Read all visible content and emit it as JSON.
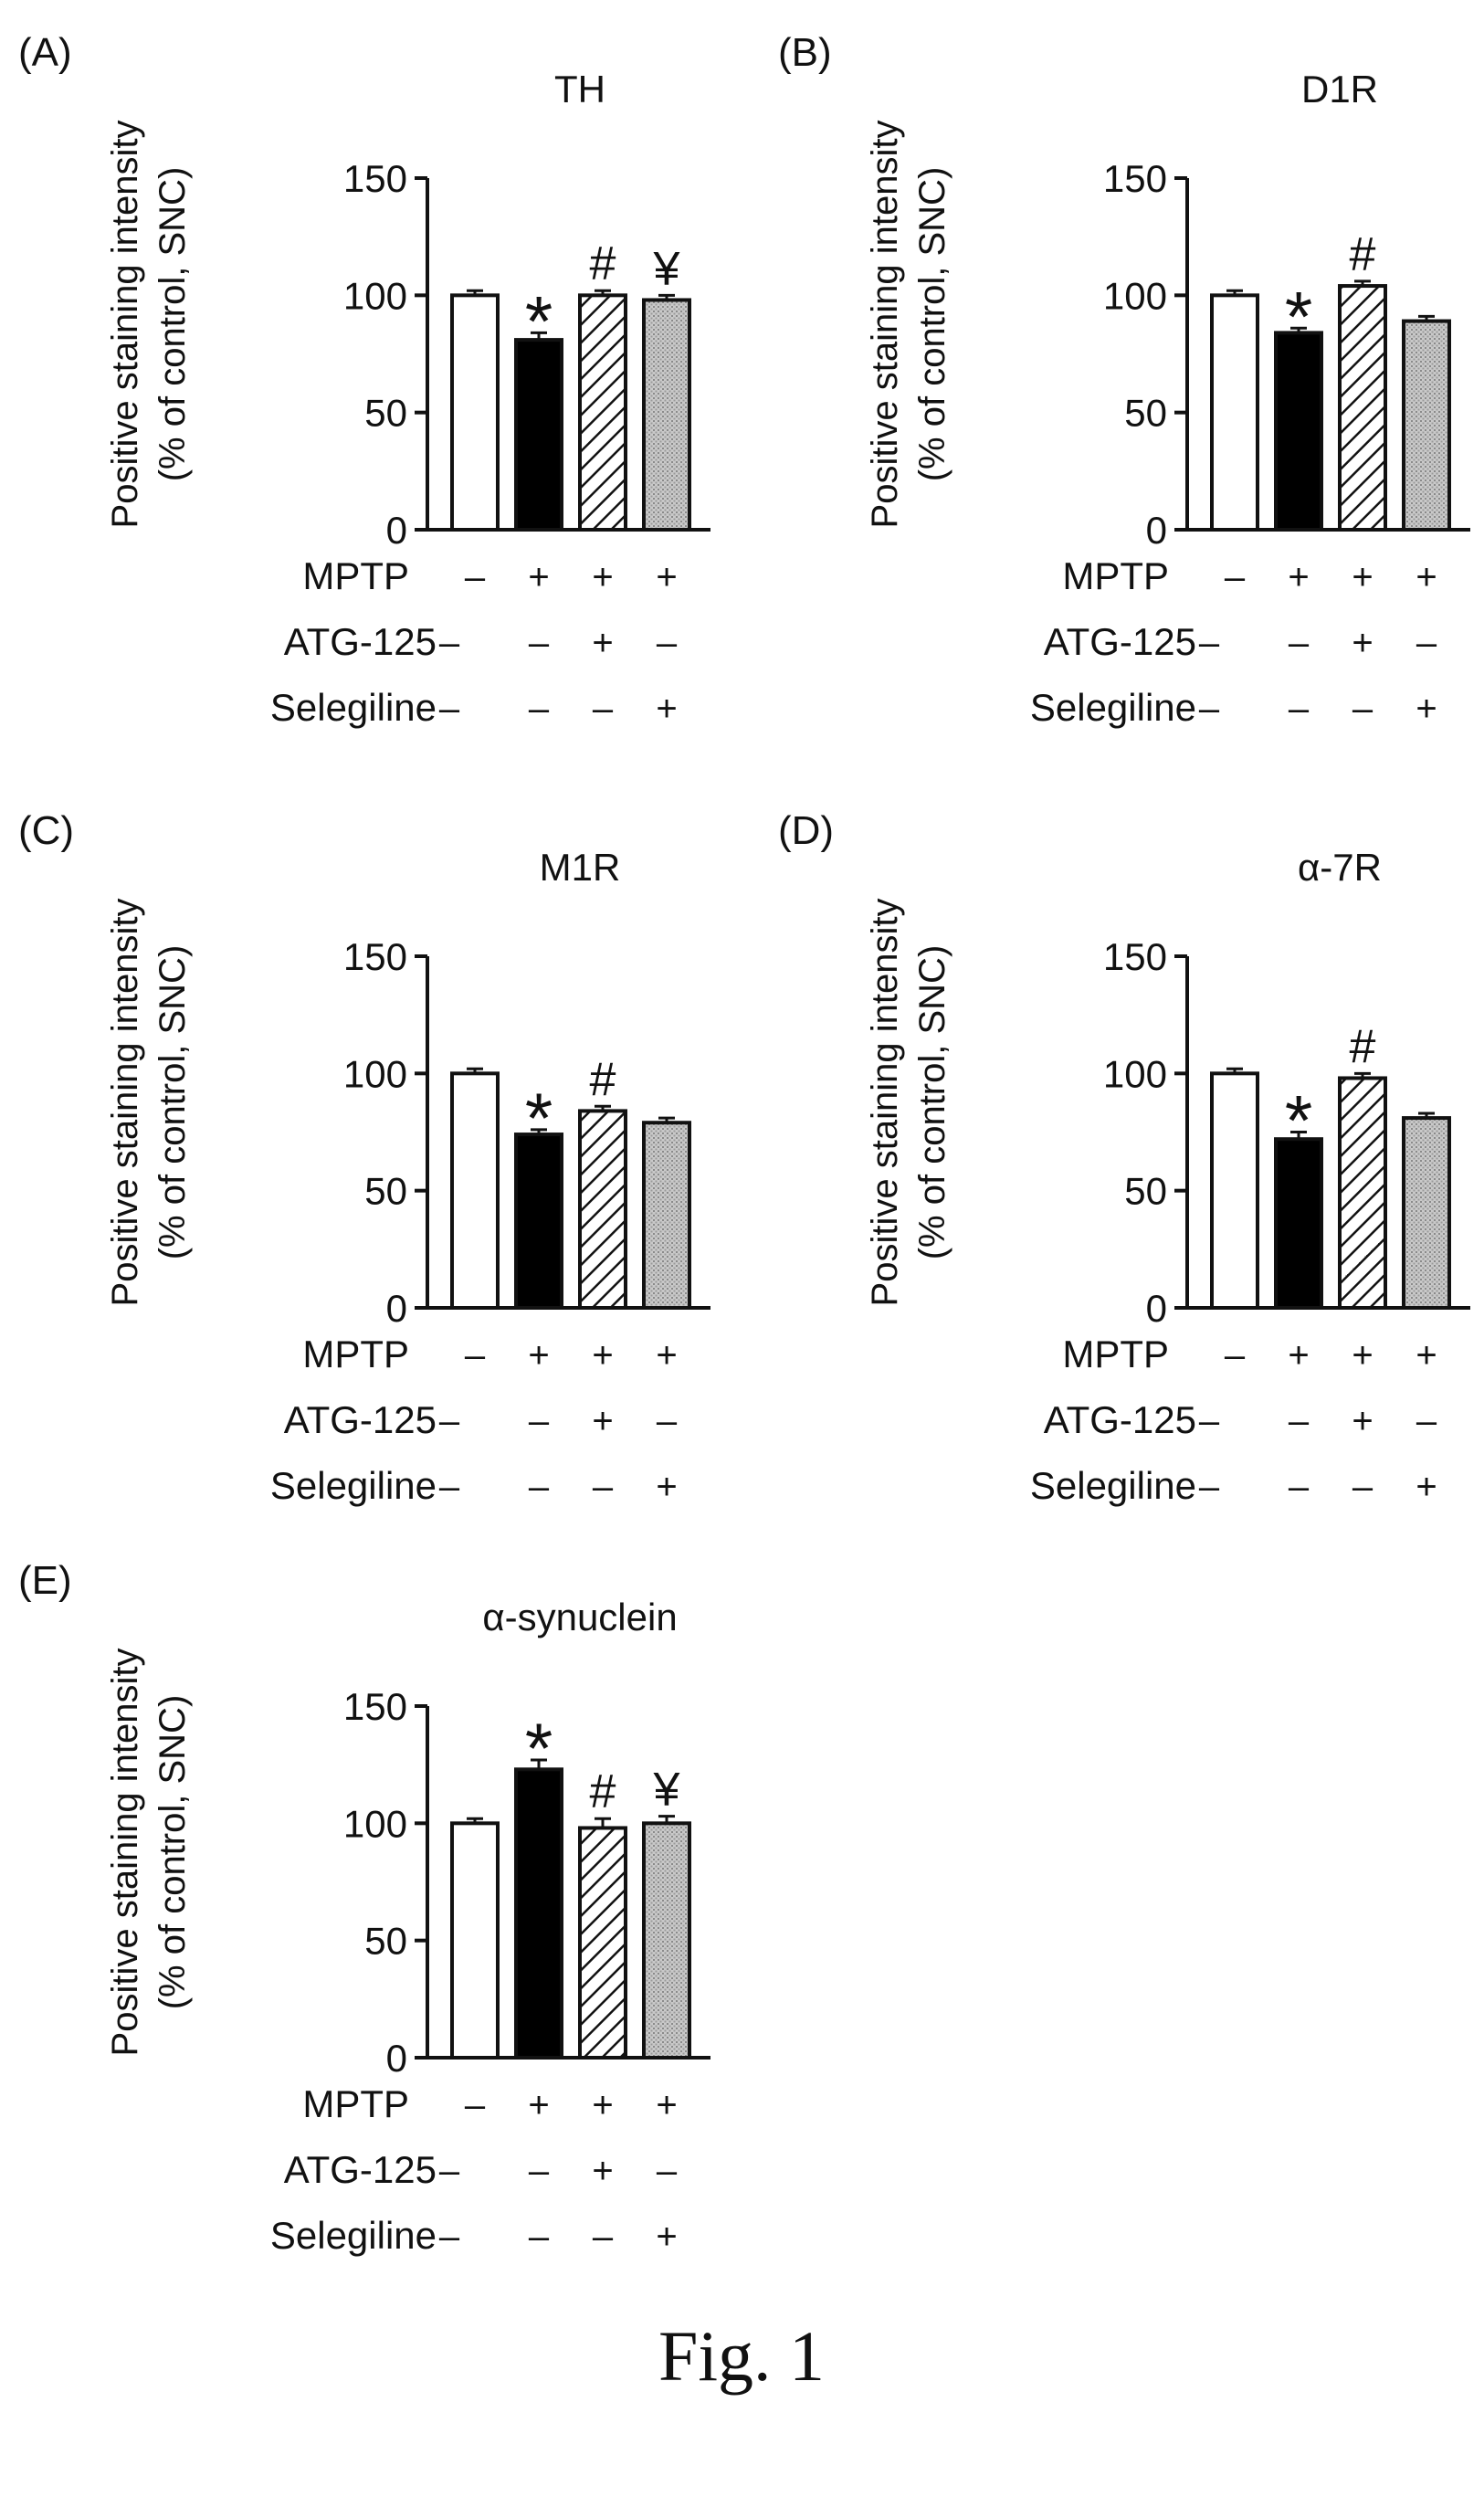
{
  "figure_caption": "Fig. 1",
  "colors": {
    "ink": "#111111",
    "selegiline_fill": "#c9c9c9",
    "control_fill": "#ffffff",
    "mptp_fill": "#000000"
  },
  "chart_data": [
    {
      "panel": "(A)",
      "type": "bar",
      "title": "TH",
      "ylabel": [
        "Positive staining intensity",
        "(% of control, SNC)"
      ],
      "ylim": [
        0,
        150
      ],
      "yticks": [
        "0",
        "50",
        "100",
        "150"
      ],
      "groups": [
        {
          "fill": "white",
          "value": 100,
          "error": 2,
          "marker": ""
        },
        {
          "fill": "black",
          "value": 81,
          "error": 3,
          "marker": "*"
        },
        {
          "fill": "hatched",
          "value": 100,
          "error": 2,
          "marker": "#"
        },
        {
          "fill": "dotted",
          "value": 98,
          "error": 2,
          "marker": "¥"
        }
      ],
      "treatment_rows": [
        {
          "label": "MPTP",
          "signs": [
            "–",
            "+",
            "+",
            "+"
          ]
        },
        {
          "label": "ATG-125",
          "signs": [
            "–",
            "–",
            "+",
            "–"
          ]
        },
        {
          "label": "Selegiline",
          "signs": [
            "–",
            "–",
            "–",
            "+"
          ]
        }
      ]
    },
    {
      "panel": "(B)",
      "type": "bar",
      "title": "D1R",
      "ylabel": [
        "Positive staining intensity",
        "(% of control, SNC)"
      ],
      "ylim": [
        0,
        150
      ],
      "yticks": [
        "0",
        "50",
        "100",
        "150"
      ],
      "groups": [
        {
          "fill": "white",
          "value": 100,
          "error": 2,
          "marker": ""
        },
        {
          "fill": "black",
          "value": 84,
          "error": 2,
          "marker": "*"
        },
        {
          "fill": "hatched",
          "value": 104,
          "error": 2,
          "marker": "#"
        },
        {
          "fill": "dotted",
          "value": 89,
          "error": 2,
          "marker": ""
        }
      ],
      "treatment_rows": [
        {
          "label": "MPTP",
          "signs": [
            "–",
            "+",
            "+",
            "+"
          ]
        },
        {
          "label": "ATG-125",
          "signs": [
            "–",
            "–",
            "+",
            "–"
          ]
        },
        {
          "label": "Selegiline",
          "signs": [
            "–",
            "–",
            "–",
            "+"
          ]
        }
      ]
    },
    {
      "panel": "(C)",
      "type": "bar",
      "title": "M1R",
      "ylabel": [
        "Positive staining intensity",
        "(% of control, SNC)"
      ],
      "ylim": [
        0,
        150
      ],
      "yticks": [
        "0",
        "50",
        "100",
        "150"
      ],
      "groups": [
        {
          "fill": "white",
          "value": 100,
          "error": 2,
          "marker": ""
        },
        {
          "fill": "black",
          "value": 74,
          "error": 2,
          "marker": "*"
        },
        {
          "fill": "hatched",
          "value": 84,
          "error": 2,
          "marker": "#"
        },
        {
          "fill": "dotted",
          "value": 79,
          "error": 2,
          "marker": ""
        }
      ],
      "treatment_rows": [
        {
          "label": "MPTP",
          "signs": [
            "–",
            "+",
            "+",
            "+"
          ]
        },
        {
          "label": "ATG-125",
          "signs": [
            "–",
            "–",
            "+",
            "–"
          ]
        },
        {
          "label": "Selegiline",
          "signs": [
            "–",
            "–",
            "–",
            "+"
          ]
        }
      ]
    },
    {
      "panel": "(D)",
      "type": "bar",
      "title": "α-7R",
      "ylabel": [
        "Positive staining intensity",
        "(% of control, SNC)"
      ],
      "ylim": [
        0,
        150
      ],
      "yticks": [
        "0",
        "50",
        "100",
        "150"
      ],
      "groups": [
        {
          "fill": "white",
          "value": 100,
          "error": 2,
          "marker": ""
        },
        {
          "fill": "black",
          "value": 72,
          "error": 3,
          "marker": "*"
        },
        {
          "fill": "hatched",
          "value": 98,
          "error": 2,
          "marker": "#"
        },
        {
          "fill": "dotted",
          "value": 81,
          "error": 2,
          "marker": ""
        }
      ],
      "treatment_rows": [
        {
          "label": "MPTP",
          "signs": [
            "–",
            "+",
            "+",
            "+"
          ]
        },
        {
          "label": "ATG-125",
          "signs": [
            "–",
            "–",
            "+",
            "–"
          ]
        },
        {
          "label": "Selegiline",
          "signs": [
            "–",
            "–",
            "–",
            "+"
          ]
        }
      ]
    },
    {
      "panel": "(E)",
      "type": "bar",
      "title": "α-synuclein",
      "ylabel": [
        "Positive staining intensity",
        "(% of control, SNC)"
      ],
      "ylim": [
        0,
        150
      ],
      "yticks": [
        "0",
        "50",
        "100",
        "150"
      ],
      "groups": [
        {
          "fill": "white",
          "value": 100,
          "error": 2,
          "marker": ""
        },
        {
          "fill": "black",
          "value": 123,
          "error": 4,
          "marker": "*"
        },
        {
          "fill": "hatched",
          "value": 98,
          "error": 4,
          "marker": "#"
        },
        {
          "fill": "dotted",
          "value": 100,
          "error": 3,
          "marker": "¥"
        }
      ],
      "treatment_rows": [
        {
          "label": "MPTP",
          "signs": [
            "–",
            "+",
            "+",
            "+"
          ]
        },
        {
          "label": "ATG-125",
          "signs": [
            "–",
            "–",
            "+",
            "–"
          ]
        },
        {
          "label": "Selegiline",
          "signs": [
            "–",
            "–",
            "–",
            "+"
          ]
        }
      ]
    }
  ]
}
